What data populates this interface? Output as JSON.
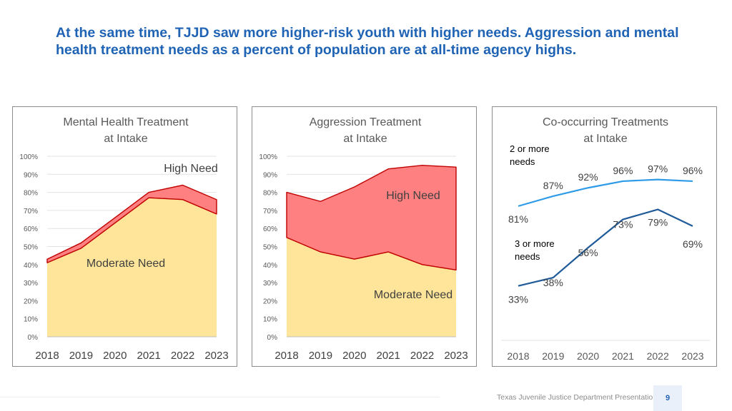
{
  "slide": {
    "title": "At the same time, TJJD saw more higher-risk youth with higher needs. Aggression and mental health treatment needs as a percent of population are at all-time agency highs.",
    "footer": "Texas Juvenile Justice Department Presentation",
    "page_number": "9"
  },
  "colors": {
    "title": "#1f63b4",
    "moderate_fill": "#fee599",
    "high_fill": "#ff8080",
    "high_line": "#c00000",
    "line_light": "#2e9be8",
    "line_dark": "#1f5a99"
  },
  "chart_data": [
    {
      "type": "area",
      "title_lines": [
        "Mental Health Treatment",
        "at Intake"
      ],
      "categories": [
        "2018",
        "2019",
        "2020",
        "2021",
        "2022",
        "2023"
      ],
      "y_ticks": [
        "0%",
        "10%",
        "20%",
        "30%",
        "40%",
        "50%",
        "60%",
        "70%",
        "80%",
        "90%",
        "100%"
      ],
      "ylim": [
        0,
        100
      ],
      "stacked": true,
      "series": [
        {
          "name": "Moderate Need",
          "values": [
            41,
            49,
            63,
            77,
            76,
            68
          ]
        },
        {
          "name": "High Need",
          "values": [
            2,
            3,
            3,
            3,
            8,
            8
          ]
        }
      ],
      "labels": {
        "high": "High Need",
        "moderate": "Moderate Need"
      }
    },
    {
      "type": "area",
      "title_lines": [
        "Aggression Treatment",
        "at Intake"
      ],
      "categories": [
        "2018",
        "2019",
        "2020",
        "2021",
        "2022",
        "2023"
      ],
      "y_ticks": [
        "0%",
        "10%",
        "20%",
        "30%",
        "40%",
        "50%",
        "60%",
        "70%",
        "80%",
        "90%",
        "100%"
      ],
      "ylim": [
        0,
        100
      ],
      "stacked": true,
      "series": [
        {
          "name": "Moderate Need",
          "values": [
            55,
            47,
            43,
            47,
            40,
            37
          ]
        },
        {
          "name": "High Need",
          "values": [
            25,
            28,
            40,
            46,
            55,
            57
          ]
        }
      ],
      "labels": {
        "high": "High Need",
        "moderate": "Moderate Need"
      }
    },
    {
      "type": "line",
      "title_lines": [
        "Co-occurring Treatments",
        "at Intake"
      ],
      "categories": [
        "2018",
        "2019",
        "2020",
        "2021",
        "2022",
        "2023"
      ],
      "ylim": [
        0,
        100
      ],
      "series": [
        {
          "name": "2 or more needs",
          "name_lines": [
            "2 or more",
            "needs"
          ],
          "values": [
            81,
            87,
            92,
            96,
            97,
            96
          ],
          "labels": [
            "81%",
            "87%",
            "92%",
            "96%",
            "97%",
            "96%"
          ]
        },
        {
          "name": "3 or more needs",
          "name_lines": [
            "3 or more",
            "needs"
          ],
          "values": [
            33,
            38,
            56,
            73,
            79,
            69
          ],
          "labels": [
            "33%",
            "38%",
            "56%",
            "73%",
            "79%",
            "69%"
          ]
        }
      ]
    }
  ]
}
